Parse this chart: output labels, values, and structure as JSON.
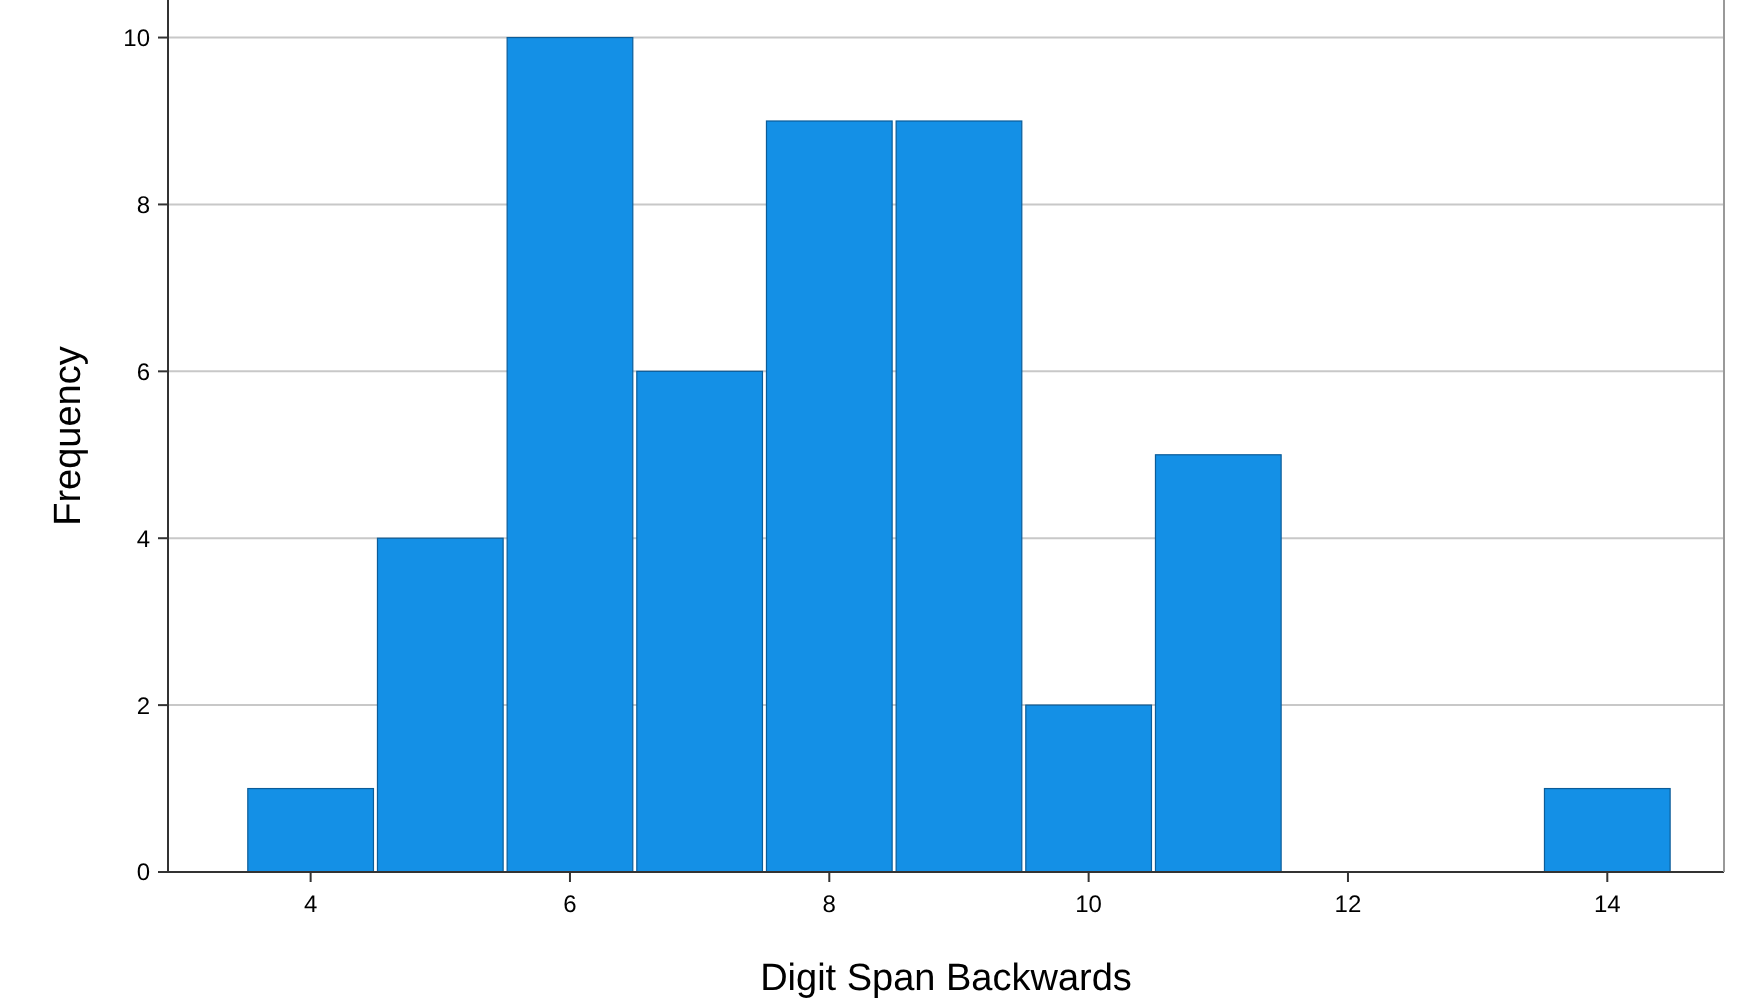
{
  "chart_data": {
    "type": "histogram",
    "xlabel": "Digit Span Backwards",
    "ylabel": "Frequency",
    "bins": [
      3.5,
      4.5,
      5.5,
      6.5,
      7.5,
      8.5,
      9.5,
      10.5,
      11.5,
      12.5,
      13.5,
      14.5
    ],
    "values": [
      1,
      4,
      10,
      6,
      9,
      9,
      2,
      5,
      0,
      0,
      1
    ],
    "color": "#1490e6",
    "xlim": [
      2.9,
      14.9
    ],
    "xticks": [
      4,
      6,
      8,
      10,
      12,
      14
    ],
    "ylim": [
      0,
      10.45
    ],
    "yticks": [
      0,
      2,
      4,
      6,
      8,
      10
    ],
    "grid": "y"
  }
}
